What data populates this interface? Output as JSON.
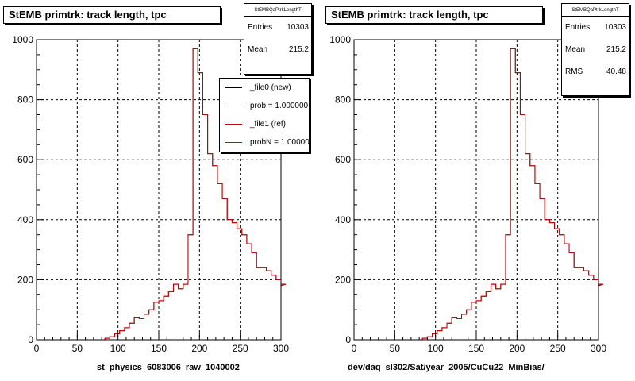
{
  "colors": {
    "new": "#000000",
    "ref": "#cc0000"
  },
  "footer_text": "",
  "chart_data": [
    {
      "type": "bar",
      "title": "StEMB primtrk: track length, tpc",
      "xlabel": "st_physics_6083006_raw_1040002",
      "ylabel": "",
      "xlim": [
        0,
        300
      ],
      "ylim": [
        0,
        1000
      ],
      "xticks": [
        0,
        50,
        100,
        150,
        200,
        250,
        300
      ],
      "yticks": [
        0,
        200,
        400,
        600,
        800,
        1000
      ],
      "grid": true,
      "bin_width": 6,
      "bin_edges_start": 0,
      "values": [
        0,
        0,
        0,
        0,
        0,
        0,
        0,
        0,
        0,
        0,
        0,
        0,
        0,
        0,
        5,
        10,
        20,
        30,
        40,
        55,
        75,
        70,
        85,
        100,
        125,
        130,
        145,
        160,
        185,
        170,
        185,
        350,
        970,
        890,
        750,
        620,
        580,
        520,
        470,
        400,
        390,
        370,
        350,
        320,
        290,
        240,
        240,
        230,
        215,
        200,
        180,
        185
      ],
      "stats": {
        "header": "StEMBQaPtrkLengthT",
        "entries_label": "Entries",
        "entries": "10303",
        "mean_label": "Mean",
        "mean": "215.2"
      },
      "legend": {
        "placement": "top-right",
        "items": [
          {
            "label": "_file0 (new)",
            "color": "#000000"
          },
          {
            "label": "prob = 1.000000",
            "color": "#000000"
          },
          {
            "label": "_file1 (ref)",
            "color": "#cc0000"
          },
          {
            "label": "probN = 1.000000",
            "color": "#cc0000"
          }
        ]
      }
    },
    {
      "type": "bar",
      "title": "StEMB primtrk: track length, tpc",
      "xlabel": "dev/daq_sl302/Sat/year_2005/CuCu22_MinBias/",
      "ylabel": "",
      "xlim": [
        0,
        300
      ],
      "ylim": [
        0,
        1000
      ],
      "xticks": [
        0,
        50,
        100,
        150,
        200,
        250,
        300
      ],
      "yticks": [
        0,
        200,
        400,
        600,
        800,
        1000
      ],
      "grid": true,
      "bin_width": 6,
      "bin_edges_start": 0,
      "values": [
        0,
        0,
        0,
        0,
        0,
        0,
        0,
        0,
        0,
        0,
        0,
        0,
        0,
        0,
        5,
        10,
        20,
        30,
        40,
        55,
        75,
        70,
        85,
        100,
        125,
        130,
        145,
        160,
        185,
        170,
        185,
        350,
        970,
        890,
        750,
        620,
        580,
        520,
        470,
        400,
        390,
        370,
        350,
        320,
        290,
        240,
        240,
        230,
        215,
        200,
        180,
        185
      ],
      "stats": {
        "header": "StEMBQaPtrkLengthT",
        "entries_label": "Entries",
        "entries": "10303",
        "mean_label": "Mean",
        "mean": "215.2",
        "rms_label": "RMS",
        "rms": "40.48"
      }
    }
  ]
}
